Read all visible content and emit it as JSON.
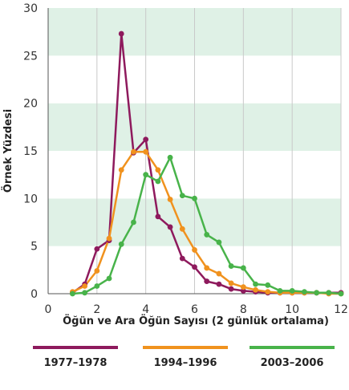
{
  "chart_data": {
    "type": "line",
    "xlabel": "Öğün ve Ara Öğün Sayısı (2 günlük ortalama)",
    "ylabel": "Örnek Yüzdesi",
    "xlim": [
      0,
      12
    ],
    "ylim": [
      0,
      30
    ],
    "xticks": [
      0,
      2,
      4,
      6,
      8,
      10,
      12
    ],
    "yticks": [
      0,
      5,
      10,
      15,
      20,
      25,
      30
    ],
    "x_tick_labels": [
      "0",
      "2",
      "4",
      "6",
      "8",
      "10",
      "12"
    ],
    "y_tick_labels": [
      "0",
      "5",
      "10",
      "15",
      "20",
      "25",
      "30"
    ],
    "background_bands": [
      "#ffffff",
      "#dff1e6"
    ],
    "legend_position": "bottom",
    "series": [
      {
        "name": "1977–1978",
        "color": "#8e1a5d",
        "points": [
          [
            1,
            0.1
          ],
          [
            1.5,
            1.0
          ],
          [
            2,
            4.7
          ],
          [
            2.5,
            5.6
          ],
          [
            3,
            27.3
          ],
          [
            3.5,
            14.8
          ],
          [
            4,
            16.2
          ],
          [
            4.5,
            8.1
          ],
          [
            5,
            7.0
          ],
          [
            5.5,
            3.7
          ],
          [
            6,
            2.8
          ],
          [
            6.5,
            1.3
          ],
          [
            7,
            1.0
          ],
          [
            7.5,
            0.5
          ],
          [
            8,
            0.3
          ],
          [
            8.5,
            0.2
          ],
          [
            9,
            0.1
          ],
          [
            9.5,
            0.1
          ],
          [
            10,
            0.1
          ],
          [
            10.5,
            0.1
          ],
          [
            11,
            0.1
          ],
          [
            11.5,
            0.1
          ],
          [
            12,
            0.1
          ]
        ]
      },
      {
        "name": "1994–1996",
        "color": "#f0921e",
        "points": [
          [
            1,
            0.2
          ],
          [
            1.5,
            0.8
          ],
          [
            2,
            2.4
          ],
          [
            2.5,
            5.8
          ],
          [
            3,
            13.0
          ],
          [
            3.5,
            14.9
          ],
          [
            4,
            14.9
          ],
          [
            4.5,
            13.0
          ],
          [
            5,
            9.9
          ],
          [
            5.5,
            6.8
          ],
          [
            6,
            4.6
          ],
          [
            6.5,
            2.7
          ],
          [
            7,
            2.1
          ],
          [
            7.5,
            1.1
          ],
          [
            8,
            0.7
          ],
          [
            8.5,
            0.4
          ],
          [
            9,
            0.2
          ],
          [
            9.5,
            0.1
          ],
          [
            10,
            0.1
          ],
          [
            10.5,
            0.1
          ],
          [
            11,
            0.1
          ],
          [
            11.5,
            0.0
          ],
          [
            12,
            0.0
          ]
        ]
      },
      {
        "name": "2003–2006",
        "color": "#48b34a",
        "points": [
          [
            1,
            0.0
          ],
          [
            1.5,
            0.1
          ],
          [
            2,
            0.8
          ],
          [
            2.5,
            1.6
          ],
          [
            3,
            5.2
          ],
          [
            3.5,
            7.5
          ],
          [
            4,
            12.5
          ],
          [
            4.5,
            11.8
          ],
          [
            5,
            14.3
          ],
          [
            5.5,
            10.3
          ],
          [
            6,
            10.0
          ],
          [
            6.5,
            6.2
          ],
          [
            7,
            5.4
          ],
          [
            7.5,
            2.9
          ],
          [
            8,
            2.7
          ],
          [
            8.5,
            1.0
          ],
          [
            9,
            0.9
          ],
          [
            9.5,
            0.3
          ],
          [
            10,
            0.3
          ],
          [
            10.5,
            0.2
          ],
          [
            11,
            0.1
          ],
          [
            11.5,
            0.1
          ],
          [
            12,
            0.0
          ]
        ]
      }
    ]
  }
}
